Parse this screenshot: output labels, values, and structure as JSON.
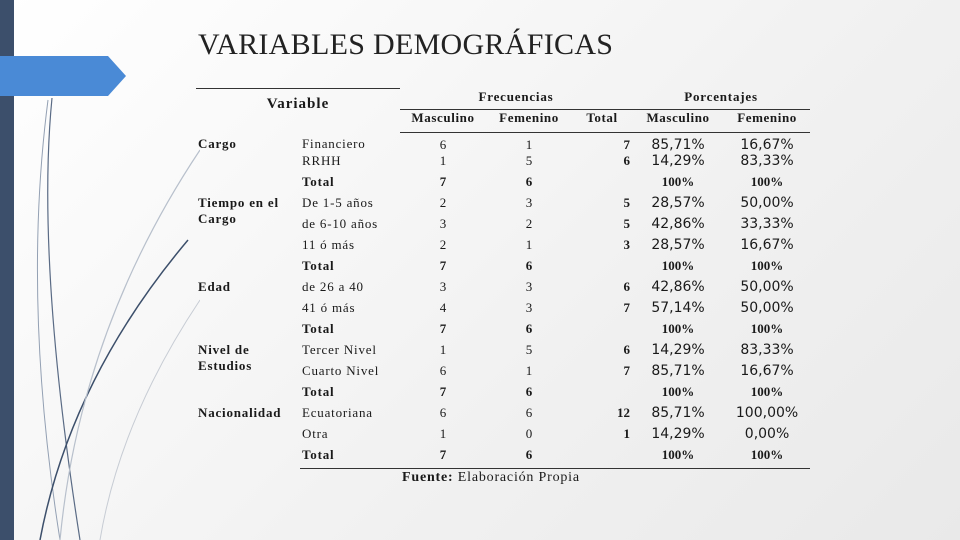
{
  "slide": {
    "title": "VARIABLES DEMOGRÁFICAS"
  },
  "table": {
    "headers": {
      "variable": "Variable",
      "frecuencias": "Frecuencias",
      "porcentajes": "Porcentajes",
      "masculino": "Masculino",
      "femenino": "Femenino",
      "total": "Total",
      "pct_masculino": "Masculino",
      "pct_femenino": "Femenino"
    },
    "rows": [
      {
        "cat": "Cargo",
        "sub": "Financiero",
        "m": "6",
        "f": "1",
        "t": "7",
        "pm": "85,71%",
        "pf": "16,67%"
      },
      {
        "cat": "",
        "sub": "RRHH",
        "m": "1",
        "f": "5",
        "t": "6",
        "pm": "14,29%",
        "pf": "83,33%"
      },
      {
        "cat": "",
        "sub": "Total",
        "m": "7",
        "f": "6",
        "t": "",
        "pm": "100%",
        "pf": "100%",
        "total": true
      },
      {
        "cat": "Tiempo en el Cargo",
        "sub": "De 1-5 años",
        "m": "2",
        "f": "3",
        "t": "5",
        "pm": "28,57%",
        "pf": "50,00%"
      },
      {
        "cat": "",
        "sub": "de 6-10 años",
        "m": "3",
        "f": "2",
        "t": "5",
        "pm": "42,86%",
        "pf": "33,33%"
      },
      {
        "cat": "",
        "sub": "11 ó más",
        "m": "2",
        "f": "1",
        "t": "3",
        "pm": "28,57%",
        "pf": "16,67%"
      },
      {
        "cat": "",
        "sub": "Total",
        "m": "7",
        "f": "6",
        "t": "",
        "pm": "100%",
        "pf": "100%",
        "total": true
      },
      {
        "cat": "Edad",
        "sub": "de 26 a 40",
        "m": "3",
        "f": "3",
        "t": "6",
        "pm": "42,86%",
        "pf": "50,00%"
      },
      {
        "cat": "",
        "sub": "41 ó más",
        "m": "4",
        "f": "3",
        "t": "7",
        "pm": "57,14%",
        "pf": "50,00%"
      },
      {
        "cat": "",
        "sub": "Total",
        "m": "7",
        "f": "6",
        "t": "",
        "pm": "100%",
        "pf": "100%",
        "total": true
      },
      {
        "cat": "Nivel de Estudios",
        "sub": "Tercer Nivel",
        "m": "1",
        "f": "5",
        "t": "6",
        "pm": "14,29%",
        "pf": "83,33%"
      },
      {
        "cat": "",
        "sub": "Cuarto Nivel",
        "m": "6",
        "f": "1",
        "t": "7",
        "pm": "85,71%",
        "pf": "16,67%"
      },
      {
        "cat": "",
        "sub": "Total",
        "m": "7",
        "f": "6",
        "t": "",
        "pm": "100%",
        "pf": "100%",
        "total": true
      },
      {
        "cat": "Nacionalidad",
        "sub": "Ecuatoriana",
        "m": "6",
        "f": "6",
        "t": "12",
        "pm": "85,71%",
        "pf": "100,00%"
      },
      {
        "cat": "",
        "sub": "Otra",
        "m": "1",
        "f": "0",
        "t": "1",
        "pm": "14,29%",
        "pf": "0,00%"
      },
      {
        "cat": "",
        "sub": "Total",
        "m": "7",
        "f": "6",
        "t": "",
        "pm": "100%",
        "pf": "100%",
        "total": true
      }
    ],
    "source_label": "Fuente:",
    "source_text": "Elaboración Propia"
  }
}
